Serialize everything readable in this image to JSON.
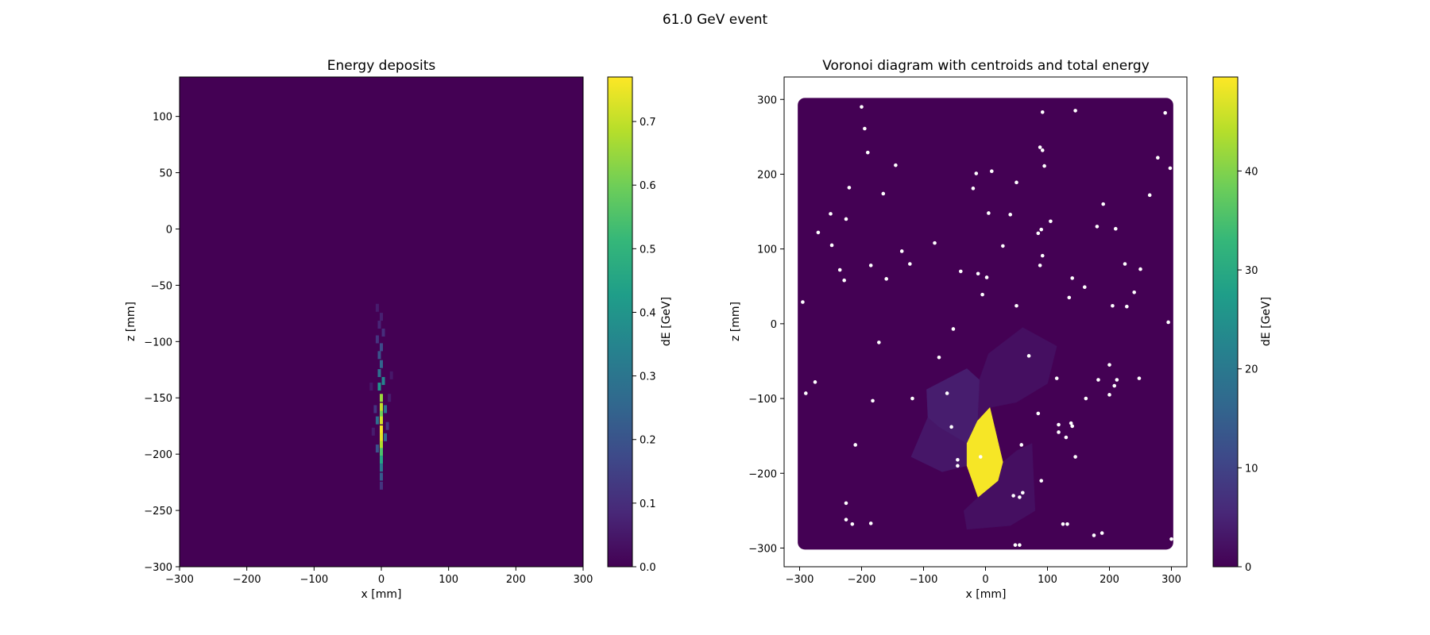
{
  "figure": {
    "suptitle": "61.0 GeV event"
  },
  "colors": {
    "viridis": [
      "#440154",
      "#482878",
      "#3e4989",
      "#31688e",
      "#26828e",
      "#1f9e89",
      "#35b779",
      "#6ece58",
      "#b5de2b",
      "#fde725"
    ],
    "dot": "#ffffff",
    "background": "#440154"
  },
  "chart_data": [
    {
      "type": "heatmap",
      "title": "Energy deposits",
      "xlabel": "x [mm]",
      "ylabel": "z [mm]",
      "xlim": [
        -300,
        300
      ],
      "ylim": [
        -300,
        135
      ],
      "xticks": [
        -300,
        -200,
        -100,
        0,
        100,
        200,
        300
      ],
      "yticks": [
        -300,
        -250,
        -200,
        -150,
        -100,
        -50,
        0,
        50,
        100
      ],
      "colorbar": {
        "label": "dE [GeV]",
        "min": 0,
        "max": 0.77,
        "ticks": [
          0.0,
          0.1,
          0.2,
          0.3,
          0.4,
          0.5,
          0.6,
          0.7
        ]
      },
      "deposits": [
        {
          "x": 0,
          "z": -150,
          "dE": 0.65
        },
        {
          "x": 0,
          "z": -158,
          "dE": 0.7
        },
        {
          "x": 0,
          "z": -165,
          "dE": 0.6
        },
        {
          "x": 0,
          "z": -170,
          "dE": 0.72
        },
        {
          "x": 0,
          "z": -178,
          "dE": 0.76
        },
        {
          "x": 0,
          "z": -185,
          "dE": 0.74
        },
        {
          "x": 0,
          "z": -192,
          "dE": 0.68
        },
        {
          "x": 0,
          "z": -198,
          "dE": 0.55
        },
        {
          "x": 0,
          "z": -205,
          "dE": 0.45
        },
        {
          "x": 0,
          "z": -212,
          "dE": 0.3
        },
        {
          "x": 0,
          "z": -220,
          "dE": 0.22
        },
        {
          "x": 0,
          "z": -228,
          "dE": 0.12
        },
        {
          "x": -3,
          "z": -140,
          "dE": 0.4
        },
        {
          "x": 3,
          "z": -135,
          "dE": 0.35
        },
        {
          "x": -3,
          "z": -128,
          "dE": 0.28
        },
        {
          "x": 0,
          "z": -120,
          "dE": 0.25
        },
        {
          "x": -3,
          "z": -112,
          "dE": 0.2
        },
        {
          "x": 0,
          "z": -105,
          "dE": 0.18
        },
        {
          "x": -6,
          "z": -98,
          "dE": 0.12
        },
        {
          "x": 3,
          "z": -92,
          "dE": 0.1
        },
        {
          "x": -3,
          "z": -85,
          "dE": 0.08
        },
        {
          "x": 0,
          "z": -78,
          "dE": 0.07
        },
        {
          "x": -6,
          "z": -70,
          "dE": 0.06
        },
        {
          "x": 6,
          "z": -160,
          "dE": 0.3
        },
        {
          "x": -6,
          "z": -170,
          "dE": 0.28
        },
        {
          "x": 6,
          "z": -185,
          "dE": 0.25
        },
        {
          "x": -6,
          "z": -195,
          "dE": 0.2
        },
        {
          "x": 9,
          "z": -175,
          "dE": 0.12
        },
        {
          "x": -9,
          "z": -160,
          "dE": 0.12
        },
        {
          "x": 12,
          "z": -150,
          "dE": 0.06
        },
        {
          "x": -12,
          "z": -180,
          "dE": 0.06
        },
        {
          "x": 15,
          "z": -130,
          "dE": 0.05
        },
        {
          "x": -15,
          "z": -140,
          "dE": 0.05
        }
      ]
    },
    {
      "type": "scatter",
      "title": "Voronoi diagram with centroids and total energy",
      "xlabel": "x [mm]",
      "ylabel": "z [mm]",
      "xlim": [
        -325,
        325
      ],
      "ylim": [
        -325,
        330
      ],
      "xticks": [
        -300,
        -200,
        -100,
        0,
        100,
        200,
        300
      ],
      "yticks": [
        -300,
        -200,
        -100,
        0,
        100,
        200,
        300
      ],
      "colorbar": {
        "label": "dE [GeV]",
        "min": 0,
        "max": 49.5,
        "ticks": [
          0,
          10,
          20,
          30,
          40
        ]
      },
      "cells": [
        {
          "dE": 49,
          "polygon": [
            [
              -30,
              -160
            ],
            [
              -13,
              -130
            ],
            [
              7,
              -112
            ],
            [
              28,
              -185
            ],
            [
              20,
              -210
            ],
            [
              -12,
              -232
            ],
            [
              -30,
              -190
            ]
          ]
        },
        {
          "dE": 4,
          "polygon": [
            [
              -95,
              -88
            ],
            [
              -30,
              -60
            ],
            [
              -10,
              -75
            ],
            [
              -13,
              -130
            ],
            [
              -30,
              -160
            ],
            [
              -75,
              -138
            ],
            [
              -93,
              -125
            ]
          ]
        },
        {
          "dE": 3,
          "polygon": [
            [
              -120,
              -178
            ],
            [
              -93,
              -125
            ],
            [
              -75,
              -138
            ],
            [
              -30,
              -160
            ],
            [
              -30,
              -190
            ],
            [
              -70,
              -198
            ]
          ]
        },
        {
          "dE": 2,
          "polygon": [
            [
              -10,
              -75
            ],
            [
              5,
              -40
            ],
            [
              60,
              -5
            ],
            [
              115,
              -30
            ],
            [
              100,
              -80
            ],
            [
              50,
              -105
            ],
            [
              7,
              -112
            ],
            [
              -13,
              -130
            ]
          ]
        },
        {
          "dE": 2,
          "polygon": [
            [
              28,
              -185
            ],
            [
              50,
              -170
            ],
            [
              75,
              -160
            ],
            [
              80,
              -250
            ],
            [
              40,
              -270
            ],
            [
              -30,
              -275
            ],
            [
              -35,
              -250
            ],
            [
              -12,
              -232
            ],
            [
              20,
              -210
            ]
          ]
        }
      ],
      "centroids": [
        [
          -295,
          29
        ],
        [
          -290,
          -93
        ],
        [
          -275,
          -78
        ],
        [
          -270,
          122
        ],
        [
          -250,
          147
        ],
        [
          -248,
          105
        ],
        [
          -235,
          72
        ],
        [
          -228,
          58
        ],
        [
          -225,
          140
        ],
        [
          -220,
          182
        ],
        [
          -210,
          -162
        ],
        [
          -200,
          290
        ],
        [
          -195,
          261
        ],
        [
          -190,
          229
        ],
        [
          -185,
          78
        ],
        [
          -182,
          -103
        ],
        [
          -172,
          -25
        ],
        [
          -165,
          174
        ],
        [
          -160,
          60
        ],
        [
          -145,
          212
        ],
        [
          -135,
          97
        ],
        [
          -122,
          80
        ],
        [
          -118,
          -100
        ],
        [
          -82,
          108
        ],
        [
          -75,
          -45
        ],
        [
          -62,
          -93
        ],
        [
          -55,
          -138
        ],
        [
          -52,
          -7
        ],
        [
          -45,
          -182
        ],
        [
          -45,
          -190
        ],
        [
          -40,
          70
        ],
        [
          -20,
          181
        ],
        [
          -15,
          201
        ],
        [
          -12,
          67
        ],
        [
          -5,
          39
        ],
        [
          -8,
          -178
        ],
        [
          2,
          62
        ],
        [
          5,
          148
        ],
        [
          10,
          204
        ],
        [
          28,
          104
        ],
        [
          40,
          146
        ],
        [
          45,
          -230
        ],
        [
          48,
          -296
        ],
        [
          50,
          189
        ],
        [
          50,
          24
        ],
        [
          55,
          -232
        ],
        [
          58,
          -162
        ],
        [
          60,
          -226
        ],
        [
          70,
          -43
        ],
        [
          85,
          -120
        ],
        [
          85,
          121
        ],
        [
          88,
          78
        ],
        [
          88,
          236
        ],
        [
          90,
          126
        ],
        [
          92,
          91
        ],
        [
          92,
          283
        ],
        [
          92,
          232
        ],
        [
          95,
          211
        ],
        [
          105,
          137
        ],
        [
          115,
          -73
        ],
        [
          118,
          -135
        ],
        [
          118,
          -145
        ],
        [
          125,
          -268
        ],
        [
          130,
          -152
        ],
        [
          132,
          -268
        ],
        [
          135,
          35
        ],
        [
          138,
          -133
        ],
        [
          140,
          -137
        ],
        [
          140,
          61
        ],
        [
          145,
          -178
        ],
        [
          145,
          285
        ],
        [
          160,
          49
        ],
        [
          162,
          -100
        ],
        [
          90,
          -210
        ],
        [
          -225,
          -240
        ],
        [
          -225,
          -262
        ],
        [
          -185,
          -267
        ],
        [
          -215,
          -268
        ],
        [
          55,
          -296
        ],
        [
          175,
          -283
        ],
        [
          180,
          130
        ],
        [
          182,
          -75
        ],
        [
          188,
          -280
        ],
        [
          190,
          160
        ],
        [
          200,
          -55
        ],
        [
          200,
          -95
        ],
        [
          205,
          24
        ],
        [
          208,
          -83
        ],
        [
          210,
          127
        ],
        [
          212,
          -75
        ],
        [
          225,
          80
        ],
        [
          228,
          23
        ],
        [
          240,
          42
        ],
        [
          248,
          -73
        ],
        [
          250,
          73
        ],
        [
          265,
          172
        ],
        [
          278,
          222
        ],
        [
          290,
          282
        ],
        [
          295,
          2
        ],
        [
          298,
          208
        ],
        [
          300,
          -288
        ]
      ]
    }
  ]
}
